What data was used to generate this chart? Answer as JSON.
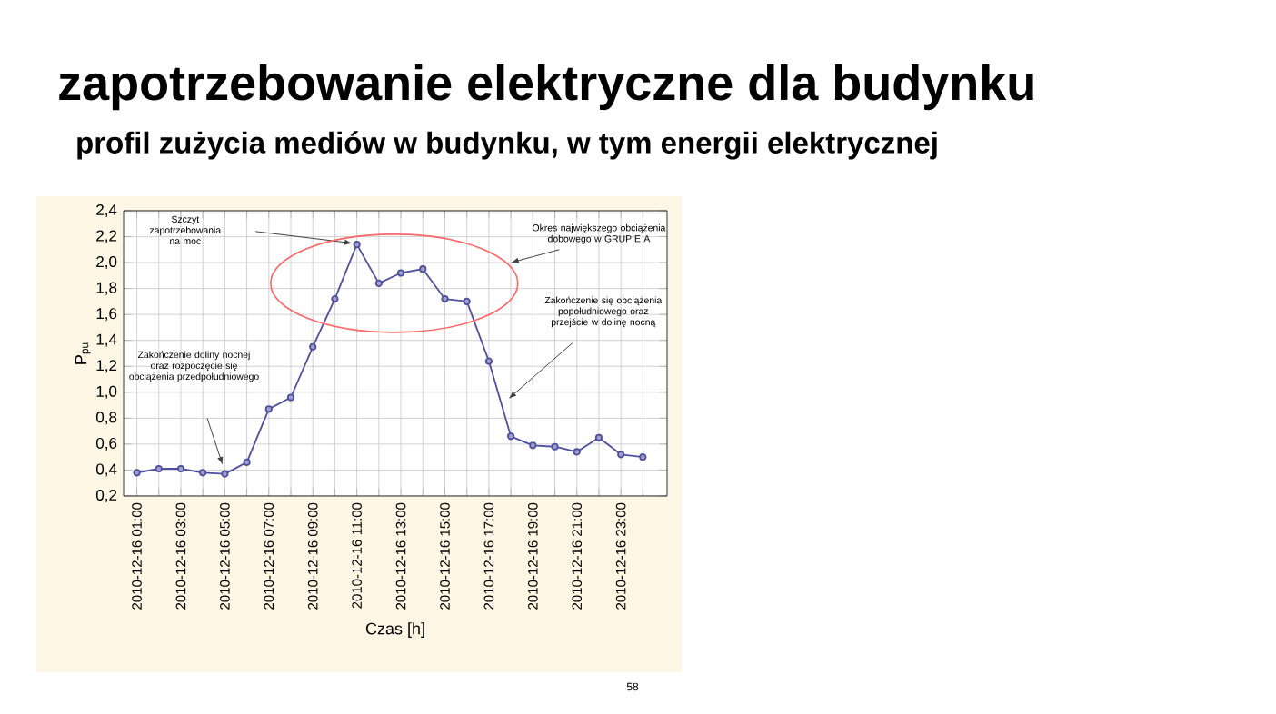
{
  "chart_data": {
    "type": "line",
    "title": "zapotrzebowanie elektryczne dla budynku",
    "subtitle": "profil zużycia mediów w budynku, w tym energii elektrycznej",
    "xlabel": "Czas [h]",
    "ylabel": "P$_{pu}$",
    "categories": [
      "2010-12-16 01:00",
      null,
      "2010-12-16 03:00",
      null,
      "2010-12-16 05:00",
      null,
      "2010-12-16 07:00",
      null,
      "2010-12-16 09:00",
      null,
      "2010-12-16 11:00",
      null,
      "2010-12-16 13:00",
      null,
      "2010-12-16 15:00",
      null,
      "2010-12-16 17:00",
      null,
      "2010-12-16 19:00",
      null,
      "2010-12-16 21:00",
      null,
      "2010-12-16 23:00",
      null
    ],
    "series": [
      {
        "color": "#4f4f9f",
        "values": [
          0.38,
          0.41,
          0.41,
          0.38,
          0.37,
          0.46,
          0.87,
          0.96,
          1.35,
          1.72,
          2.14,
          1.84,
          1.92,
          1.95,
          1.72,
          1.7,
          1.24,
          0.66,
          0.59,
          0.58,
          0.54,
          0.65,
          0.52,
          0.5
        ]
      }
    ],
    "ylim": [
      0.2,
      2.4
    ],
    "yticks": [
      {
        "value": 0.2,
        "label": "0,2"
      },
      {
        "value": 0.4,
        "label": "0,4"
      },
      {
        "value": 0.6,
        "label": "0,6"
      },
      {
        "value": 0.8,
        "label": "0,8"
      },
      {
        "value": 1.0,
        "label": "1,0"
      },
      {
        "value": 1.2,
        "label": "1,2"
      },
      {
        "value": 1.4,
        "label": "1,4"
      },
      {
        "value": 1.6,
        "label": "1,6"
      },
      {
        "value": 1.8,
        "label": "1,8"
      },
      {
        "value": 2.0,
        "label": "2,0"
      },
      {
        "value": 2.2,
        "label": "2,2"
      },
      {
        "value": 2.4,
        "label": "2,4"
      }
    ],
    "grid": true,
    "marker": "circle",
    "line_style": "solid",
    "annotations": [
      "Szczyt zapotrzebowania na moc",
      "Okres największego obciążenia dobowego w GRUPIE A",
      "Zakończenie się obciążenia popołudniowego oraz przejście w dolinę nocną",
      "Zakończenie doliny nocnej oraz rozpoczęcie się obciążenia przedpołudniowego",
      "58"
    ]
  }
}
